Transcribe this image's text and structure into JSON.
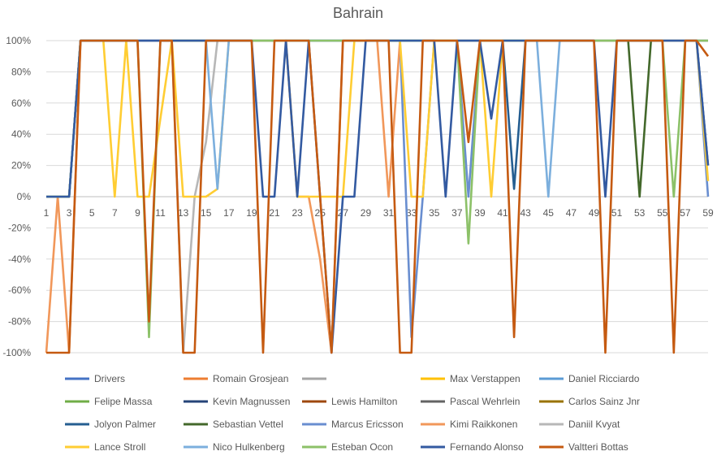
{
  "chart_data": {
    "type": "line",
    "title": "Bahrain",
    "xlabel": "",
    "ylabel": "",
    "x": [
      1,
      2,
      3,
      4,
      5,
      6,
      7,
      8,
      9,
      10,
      11,
      12,
      13,
      14,
      15,
      16,
      17,
      18,
      19,
      20,
      21,
      22,
      23,
      24,
      25,
      26,
      27,
      28,
      29,
      30,
      31,
      32,
      33,
      34,
      35,
      36,
      37,
      38,
      39,
      40,
      41,
      42,
      43,
      44,
      45,
      46,
      47,
      48,
      49,
      50,
      51,
      52,
      53,
      54,
      55,
      56,
      57,
      58,
      59
    ],
    "x_tick_labels": [
      "1",
      "3",
      "5",
      "7",
      "9",
      "11",
      "13",
      "15",
      "17",
      "19",
      "21",
      "23",
      "25",
      "27",
      "29",
      "31",
      "33",
      "35",
      "37",
      "39",
      "41",
      "43",
      "45",
      "47",
      "49",
      "51",
      "53",
      "55",
      "57",
      "59"
    ],
    "ylim": [
      -100,
      100
    ],
    "y_tick_labels": [
      "100%",
      "80%",
      "60%",
      "40%",
      "20%",
      "0%",
      "-20%",
      "-40%",
      "-60%",
      "-80%",
      "-100%"
    ],
    "y_ticks": [
      100,
      80,
      60,
      40,
      20,
      0,
      -20,
      -40,
      -60,
      -80,
      -100
    ],
    "grid": "horizontal",
    "legend_position": "bottom",
    "series": [
      {
        "name": "Drivers",
        "color": "#4472C4"
      },
      {
        "name": "Romain Grosjean",
        "color": "#ED7D31"
      },
      {
        "name": "",
        "color": "#A5A5A5"
      },
      {
        "name": "Max Verstappen",
        "color": "#FFC000"
      },
      {
        "name": "Daniel Ricciardo",
        "color": "#5B9BD5"
      },
      {
        "name": "Felipe Massa",
        "color": "#70AD47"
      },
      {
        "name": "Kevin Magnussen",
        "color": "#264478"
      },
      {
        "name": "Lewis Hamilton",
        "color": "#9E480E"
      },
      {
        "name": "Pascal Wehrlein",
        "color": "#636363"
      },
      {
        "name": "Carlos Sainz Jnr",
        "color": "#997300"
      },
      {
        "name": "Jolyon Palmer",
        "color": "#255E91",
        "values": [
          0,
          0,
          0,
          100,
          100,
          100,
          100,
          100,
          100,
          100,
          100,
          100,
          100,
          100,
          100,
          100,
          100,
          100,
          100,
          100,
          100,
          100,
          100,
          100,
          100,
          100,
          100,
          100,
          100,
          100,
          100,
          100,
          100,
          100,
          100,
          100,
          100,
          100,
          100,
          100,
          100,
          5,
          100,
          100,
          100,
          100,
          100,
          100,
          100,
          100,
          100,
          100,
          100,
          100,
          100,
          100,
          100,
          100,
          20
        ]
      },
      {
        "name": "Sebastian Vettel",
        "color": "#43682B",
        "values": [
          0,
          0,
          0,
          100,
          100,
          100,
          100,
          100,
          100,
          100,
          100,
          100,
          100,
          100,
          100,
          100,
          100,
          100,
          100,
          100,
          100,
          100,
          100,
          100,
          100,
          100,
          100,
          100,
          100,
          100,
          100,
          100,
          100,
          100,
          100,
          100,
          100,
          100,
          100,
          100,
          100,
          100,
          100,
          100,
          100,
          100,
          100,
          100,
          100,
          100,
          100,
          100,
          0,
          100,
          100,
          100,
          100,
          100,
          100
        ]
      },
      {
        "name": "Marcus Ericsson",
        "color": "#698ED0",
        "values": [
          0,
          0,
          0,
          100,
          100,
          100,
          100,
          100,
          100,
          100,
          100,
          100,
          100,
          100,
          100,
          100,
          100,
          100,
          100,
          100,
          100,
          100,
          100,
          100,
          100,
          100,
          100,
          100,
          100,
          100,
          100,
          100,
          -90,
          0,
          100,
          100,
          100,
          0,
          100,
          100,
          100,
          100,
          100,
          100,
          100,
          100,
          100,
          100,
          100,
          100,
          100,
          100,
          100,
          100,
          100,
          100,
          100,
          100,
          0
        ]
      },
      {
        "name": "Kimi Raikkonen",
        "color": "#F1975A",
        "values": [
          -100,
          0,
          -100,
          100,
          100,
          100,
          100,
          100,
          100,
          100,
          100,
          100,
          100,
          100,
          100,
          100,
          100,
          100,
          100,
          100,
          100,
          100,
          0,
          0,
          -40,
          -100,
          100,
          100,
          100,
          100,
          0,
          100,
          100,
          100,
          100,
          100,
          100,
          100,
          100,
          100,
          100,
          100,
          100,
          100,
          100,
          100,
          100,
          100,
          100,
          100,
          100,
          100,
          100,
          100,
          100,
          100,
          100,
          100,
          100
        ]
      },
      {
        "name": "Daniil Kvyat",
        "color": "#B7B7B7",
        "values": [
          0,
          0,
          0,
          100,
          100,
          100,
          100,
          100,
          100,
          100,
          100,
          100,
          -100,
          0,
          35,
          100,
          100,
          100,
          100,
          100,
          100,
          100,
          100,
          100,
          100,
          100,
          100,
          100,
          100,
          100,
          100,
          100,
          100,
          100,
          100,
          100,
          100,
          100,
          100,
          100,
          100,
          100,
          100,
          100,
          100,
          100,
          100,
          100,
          100,
          100,
          100,
          100,
          100,
          100,
          100,
          100,
          100,
          100,
          100
        ]
      },
      {
        "name": "Lance Stroll",
        "color": "#FFCD33",
        "values": [
          0,
          0,
          0,
          100,
          100,
          100,
          0,
          100,
          0,
          0,
          50,
          100,
          0,
          0,
          0,
          5,
          100,
          100,
          100,
          100,
          100,
          100,
          0,
          0,
          0,
          0,
          0,
          100,
          100,
          100,
          100,
          100,
          0,
          0,
          100,
          100,
          100,
          100,
          100,
          0,
          100,
          100,
          100,
          100,
          100,
          100,
          100,
          100,
          100,
          100,
          100,
          100,
          100,
          100,
          100,
          100,
          100,
          100,
          10
        ]
      },
      {
        "name": "Nico Hulkenberg",
        "color": "#7CAFDD",
        "values": [
          0,
          0,
          0,
          100,
          100,
          100,
          100,
          100,
          100,
          100,
          100,
          100,
          100,
          100,
          100,
          5,
          100,
          100,
          100,
          100,
          100,
          100,
          100,
          100,
          100,
          100,
          100,
          100,
          100,
          100,
          100,
          100,
          100,
          100,
          100,
          100,
          100,
          100,
          100,
          100,
          100,
          100,
          100,
          100,
          0,
          100,
          100,
          100,
          100,
          100,
          100,
          100,
          100,
          100,
          100,
          100,
          100,
          100,
          100
        ]
      },
      {
        "name": "Esteban Ocon",
        "color": "#8CC168",
        "values": [
          0,
          0,
          0,
          100,
          100,
          100,
          100,
          100,
          100,
          -90,
          100,
          100,
          100,
          100,
          100,
          100,
          100,
          100,
          100,
          100,
          100,
          100,
          100,
          100,
          100,
          100,
          100,
          100,
          100,
          100,
          100,
          100,
          100,
          100,
          100,
          100,
          100,
          -30,
          100,
          100,
          100,
          100,
          100,
          100,
          100,
          100,
          100,
          100,
          100,
          100,
          100,
          100,
          100,
          100,
          100,
          0,
          100,
          100,
          100
        ]
      },
      {
        "name": "Fernando Alonso",
        "color": "#335AA1",
        "values": [
          0,
          0,
          0,
          100,
          100,
          100,
          100,
          100,
          100,
          100,
          100,
          100,
          100,
          100,
          100,
          100,
          100,
          100,
          100,
          0,
          0,
          100,
          0,
          100,
          0,
          -100,
          0,
          0,
          100,
          100,
          100,
          100,
          100,
          100,
          100,
          0,
          100,
          100,
          100,
          50,
          100,
          100,
          100,
          100,
          100,
          100,
          100,
          100,
          100,
          0,
          100,
          100,
          100,
          100,
          100,
          100,
          100,
          100,
          20
        ]
      },
      {
        "name": "Valtteri Bottas",
        "color": "#C55A11",
        "values": [
          -100,
          -100,
          -100,
          100,
          100,
          100,
          100,
          100,
          100,
          -80,
          100,
          100,
          -100,
          -100,
          100,
          100,
          100,
          100,
          100,
          -100,
          100,
          100,
          100,
          100,
          0,
          -100,
          100,
          100,
          100,
          100,
          100,
          -100,
          -100,
          100,
          100,
          100,
          100,
          35,
          100,
          100,
          100,
          -90,
          100,
          100,
          100,
          100,
          100,
          100,
          100,
          -100,
          100,
          100,
          100,
          100,
          100,
          -100,
          100,
          100,
          90
        ]
      }
    ]
  }
}
